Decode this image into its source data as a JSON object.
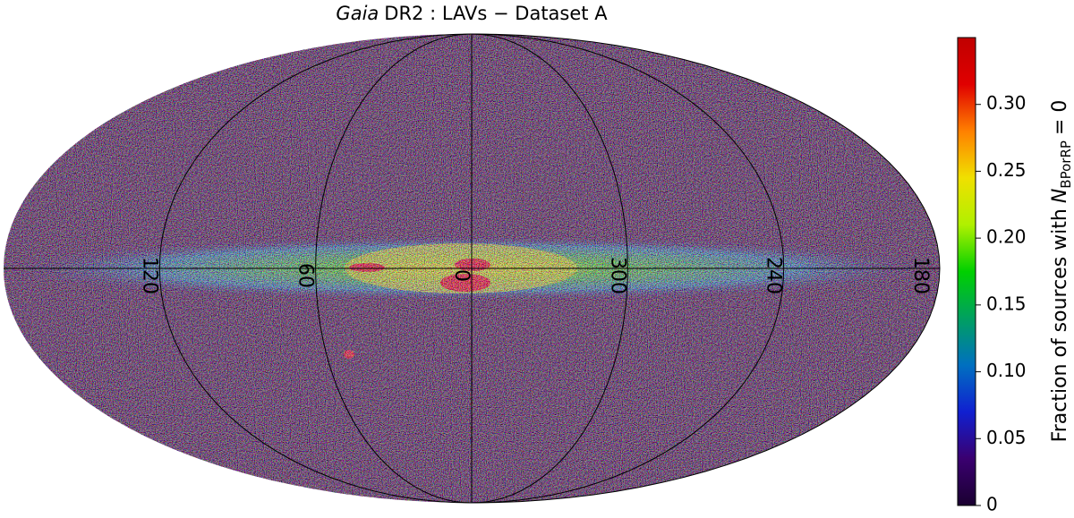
{
  "chart_data": {
    "type": "skymap",
    "projection": "mollweide",
    "title": {
      "emphasis": "Gaia",
      "text": "DR2 : LAVs  −  Dataset A"
    },
    "longitude_ticks": [
      120,
      60,
      0,
      300,
      240,
      180
    ],
    "colorbar": {
      "label": {
        "text": "Fraction of sources with",
        "symbol": "N",
        "subscript": "BPorRP",
        "relation": "= 0"
      },
      "lim": [
        0,
        0.35
      ],
      "ticks": [
        0,
        0.05,
        {
          "value": 0.1,
          "label": "0.10"
        },
        0.15,
        {
          "value": 0.2,
          "label": "0.20"
        },
        0.25,
        {
          "value": 0.3,
          "label": "0.30"
        }
      ],
      "colormap": [
        "#1a0030",
        "#3a0070",
        "#1020d0",
        "#0070c0",
        "#00a060",
        "#00d000",
        "#b0f000",
        "#f0e000",
        "#ff8000",
        "#e00000",
        "#c00000"
      ]
    }
  }
}
